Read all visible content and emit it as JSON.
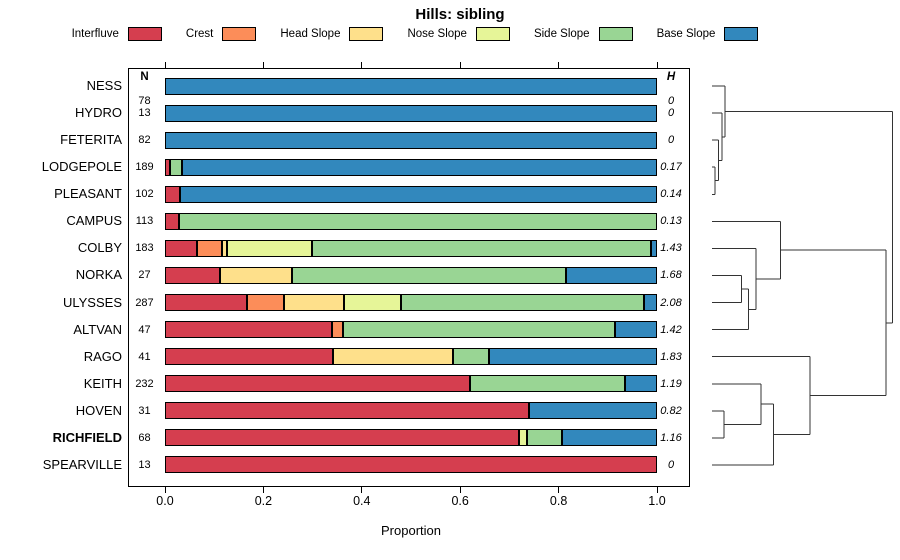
{
  "title": "Hills: sibling",
  "legend": [
    {
      "label": "Interfluve",
      "color": "#D53E4F"
    },
    {
      "label": "Crest",
      "color": "#FC8D59"
    },
    {
      "label": "Head Slope",
      "color": "#FEE08B"
    },
    {
      "label": "Nose Slope",
      "color": "#E6F598"
    },
    {
      "label": "Side Slope",
      "color": "#99D594"
    },
    {
      "label": "Base Slope",
      "color": "#3288BD"
    }
  ],
  "columns": {
    "n_header": "N",
    "h_header": "H"
  },
  "x_axis": {
    "label": "Proportion",
    "tick_labels": [
      "0.0",
      "0.2",
      "0.4",
      "0.6",
      "0.8",
      "1.0"
    ],
    "tick_values": [
      0,
      0.2,
      0.4,
      0.6,
      0.8,
      1.0
    ],
    "range": [
      0,
      1
    ]
  },
  "chart_data": {
    "type": "bar",
    "stacked": true,
    "orientation": "horizontal",
    "title": "Hills: sibling",
    "xlabel": "Proportion",
    "xlim": [
      0,
      1
    ],
    "grid": false,
    "categories": [
      "Interfluve",
      "Crest",
      "Head Slope",
      "Nose Slope",
      "Side Slope",
      "Base Slope"
    ],
    "colors": [
      "#D53E4F",
      "#FC8D59",
      "#FEE08B",
      "#E6F598",
      "#99D594",
      "#3288BD"
    ],
    "rows": [
      {
        "name": "NESS",
        "n": 78,
        "h": "0",
        "bold": false,
        "values": [
          0,
          0,
          0,
          0,
          0,
          1
        ]
      },
      {
        "name": "HYDRO",
        "n": 13,
        "h": "0",
        "bold": false,
        "values": [
          0,
          0,
          0,
          0,
          0,
          1
        ]
      },
      {
        "name": "FETERITA",
        "n": 82,
        "h": "0",
        "bold": false,
        "values": [
          0,
          0,
          0,
          0,
          0,
          1
        ]
      },
      {
        "name": "LODGEPOLE",
        "n": 189,
        "h": "0.17",
        "bold": false,
        "values": [
          0.01,
          0,
          0,
          0,
          0.025,
          0.965
        ]
      },
      {
        "name": "PLEASANT",
        "n": 102,
        "h": "0.14",
        "bold": false,
        "values": [
          0.03,
          0,
          0,
          0,
          0,
          0.97
        ]
      },
      {
        "name": "CAMPUS",
        "n": 113,
        "h": "0.13",
        "bold": false,
        "values": [
          0.028,
          0,
          0,
          0,
          0.972,
          0
        ]
      },
      {
        "name": "COLBY",
        "n": 183,
        "h": "1.43",
        "bold": false,
        "values": [
          0.066,
          0.049,
          0.011,
          0.173,
          0.688,
          0.013
        ]
      },
      {
        "name": "NORKA",
        "n": 27,
        "h": "1.68",
        "bold": false,
        "values": [
          0.111,
          0,
          0.148,
          0,
          0.556,
          0.185
        ]
      },
      {
        "name": "ULYSSES",
        "n": 287,
        "h": "2.08",
        "bold": false,
        "values": [
          0.167,
          0.075,
          0.122,
          0.115,
          0.495,
          0.026
        ]
      },
      {
        "name": "ALTVAN",
        "n": 47,
        "h": "1.42",
        "bold": false,
        "values": [
          0.34,
          0.021,
          0,
          0,
          0.553,
          0.086
        ]
      },
      {
        "name": "RAGO",
        "n": 41,
        "h": "1.83",
        "bold": false,
        "values": [
          0.341,
          0,
          0.244,
          0,
          0.073,
          0.342
        ]
      },
      {
        "name": "KEITH",
        "n": 232,
        "h": "1.19",
        "bold": false,
        "values": [
          0.62,
          0,
          0,
          0,
          0.315,
          0.065
        ]
      },
      {
        "name": "HOVEN",
        "n": 31,
        "h": "0.82",
        "bold": false,
        "values": [
          0.74,
          0,
          0,
          0,
          0,
          0.26
        ]
      },
      {
        "name": "RICHFIELD",
        "n": 68,
        "h": "1.16",
        "bold": true,
        "values": [
          0.72,
          0,
          0,
          0.015,
          0.072,
          0.193
        ]
      },
      {
        "name": "SPEARVILLE",
        "n": 13,
        "h": "0",
        "bold": false,
        "values": [
          1,
          0,
          0,
          0,
          0,
          0
        ]
      }
    ],
    "dendrogram": {
      "note": "merges: [childA, childB, normalized height]; @i refers to merge i",
      "merges": [
        [
          "LODGEPOLE",
          "PLEASANT",
          0.017
        ],
        [
          "FETERITA",
          "@0",
          0.035
        ],
        [
          "HYDRO",
          "@1",
          0.054
        ],
        [
          "NESS",
          "@2",
          0.072
        ],
        [
          "NORKA",
          "ULYSSES",
          0.164
        ],
        [
          "@4",
          "ALTVAN",
          0.201
        ],
        [
          "COLBY",
          "@5",
          0.244
        ],
        [
          "CAMPUS",
          "@6",
          0.38
        ],
        [
          "HOVEN",
          "RICHFIELD",
          0.066
        ],
        [
          "KEITH",
          "@8",
          0.27
        ],
        [
          "@9",
          "SPEARVILLE",
          0.339
        ],
        [
          "RAGO",
          "@10",
          0.542
        ],
        [
          "@7",
          "@11",
          0.963
        ],
        [
          "@3",
          "@12",
          1.0
        ]
      ]
    }
  }
}
